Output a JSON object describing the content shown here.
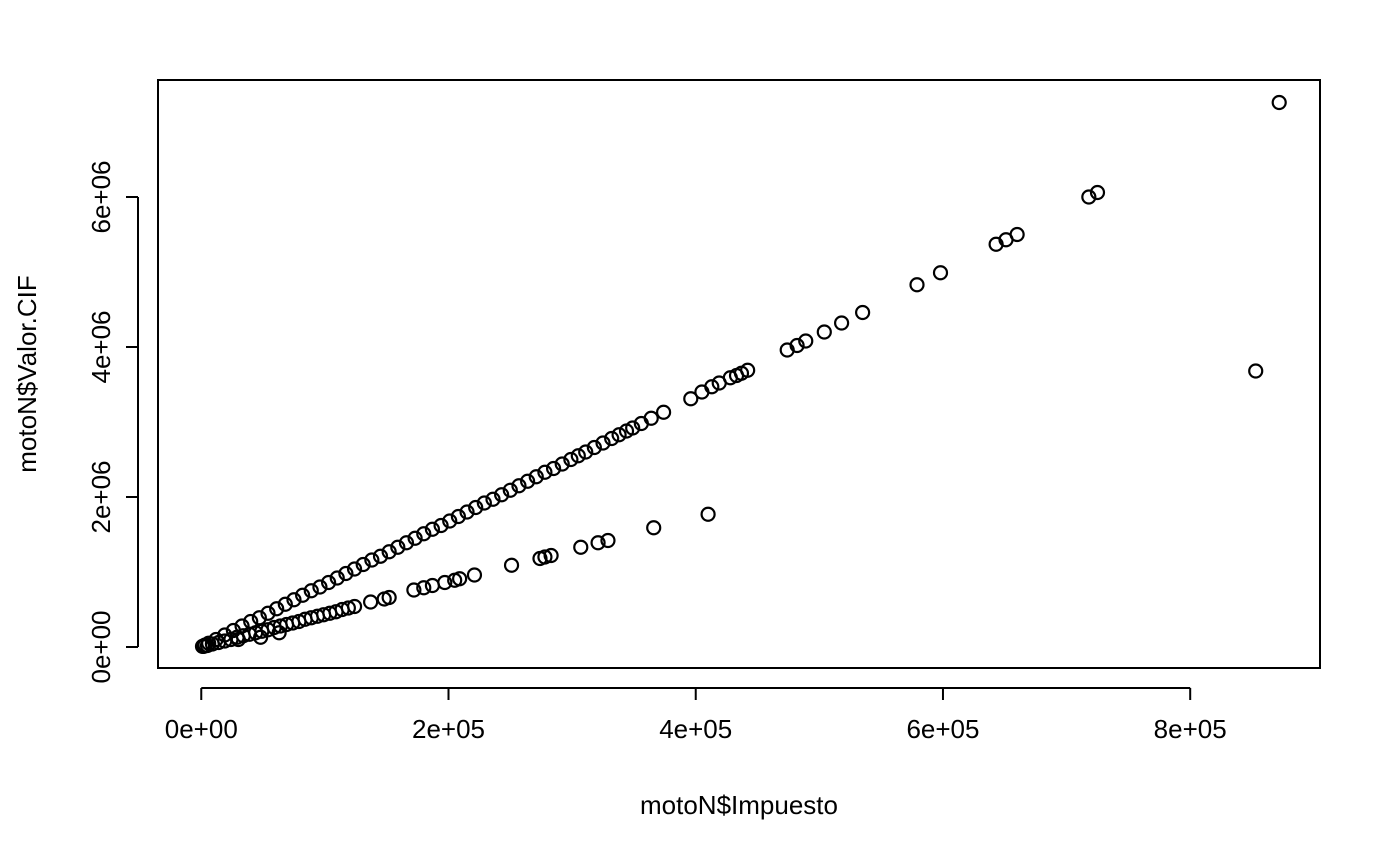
{
  "chart_data": {
    "type": "scatter",
    "title": "",
    "xlabel": "motoN$Impuesto",
    "ylabel": "motoN$Valor.CIF",
    "xlim": [
      -35000,
      905000
    ],
    "ylim": [
      -280000,
      7560000
    ],
    "x_ticks": [
      0,
      200000,
      400000,
      600000,
      800000
    ],
    "x_tick_labels": [
      "0e+00",
      "2e+05",
      "4e+05",
      "6e+05",
      "8e+05"
    ],
    "y_ticks": [
      0,
      2000000,
      4000000,
      6000000
    ],
    "y_tick_labels": [
      "0e+00",
      "2e+06",
      "4e+06",
      "6e+06"
    ],
    "grid": false,
    "legend": "none",
    "series": [
      {
        "marker": "open-circle",
        "color": "#000000",
        "x": [
          872000,
          725000,
          718000,
          660000,
          651000,
          643000,
          598000,
          579000,
          535000,
          518000,
          504000,
          489000,
          482000,
          474000,
          442000,
          437000,
          433000,
          428000,
          419000,
          413000,
          405000,
          396000,
          374000,
          364000,
          356000,
          349000,
          344000,
          338000,
          332000,
          325000,
          318000,
          311000,
          305000,
          299000,
          292000,
          285000,
          278000,
          271000,
          264000,
          257000,
          250000,
          243000,
          236000,
          229000,
          222000,
          215000,
          208000,
          201000,
          194000,
          187000,
          180000,
          173000,
          166000,
          159000,
          152000,
          145000,
          138000,
          131000,
          124000,
          117000,
          110000,
          103000,
          96000,
          89000,
          82000,
          75000,
          68000,
          61000,
          54000,
          47000,
          40000,
          33000,
          26000,
          19000,
          12000,
          6000,
          3000,
          1000,
          853000,
          410000,
          366000,
          329000,
          321000,
          307000,
          283000,
          278000,
          274000,
          251000,
          221000,
          209000,
          205000,
          197000,
          187000,
          180000,
          172000,
          152000,
          148000,
          137000,
          124000,
          119000,
          114000,
          109000,
          104000,
          99000,
          94000,
          89000,
          84000,
          79000,
          74000,
          69000,
          64000,
          59000,
          54000,
          49000,
          44000,
          39000,
          34000,
          29000,
          24000,
          19000,
          14000,
          9000,
          5000,
          2000,
          63000,
          48000,
          30000
        ],
        "y": [
          7260000,
          6060000,
          6000000,
          5500000,
          5430000,
          5370000,
          4990000,
          4830000,
          4460000,
          4320000,
          4200000,
          4080000,
          4020000,
          3960000,
          3690000,
          3650000,
          3620000,
          3590000,
          3520000,
          3470000,
          3400000,
          3310000,
          3130000,
          3050000,
          2980000,
          2920000,
          2880000,
          2830000,
          2780000,
          2720000,
          2660000,
          2600000,
          2550000,
          2500000,
          2440000,
          2380000,
          2330000,
          2270000,
          2210000,
          2150000,
          2090000,
          2030000,
          1970000,
          1920000,
          1860000,
          1800000,
          1740000,
          1680000,
          1620000,
          1570000,
          1510000,
          1450000,
          1390000,
          1330000,
          1270000,
          1210000,
          1160000,
          1100000,
          1040000,
          980000,
          920000,
          860000,
          800000,
          750000,
          690000,
          630000,
          570000,
          510000,
          450000,
          390000,
          340000,
          280000,
          220000,
          160000,
          100000,
          50000,
          25000,
          8000,
          3680000,
          1770000,
          1590000,
          1420000,
          1390000,
          1330000,
          1220000,
          1200000,
          1180000,
          1090000,
          960000,
          910000,
          890000,
          860000,
          820000,
          790000,
          760000,
          660000,
          640000,
          600000,
          540000,
          520000,
          500000,
          470000,
          450000,
          430000,
          410000,
          390000,
          370000,
          340000,
          320000,
          300000,
          280000,
          260000,
          230000,
          210000,
          190000,
          170000,
          150000,
          130000,
          100000,
          80000,
          60000,
          40000,
          20000,
          8000,
          190000,
          130000,
          100000
        ]
      }
    ]
  }
}
